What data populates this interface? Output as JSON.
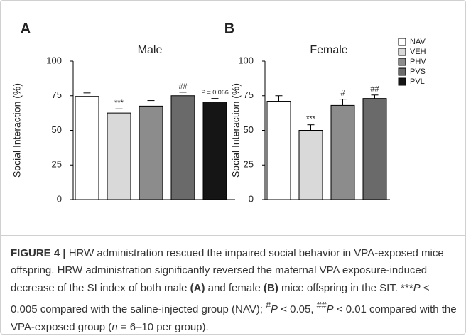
{
  "chart_data": [
    {
      "type": "bar",
      "panel": "A",
      "title": "Male",
      "ylabel": "Social Interaction (%)",
      "categories": [
        "NAV",
        "VEH",
        "PHV",
        "PVS",
        "PVL"
      ],
      "values": [
        74.5,
        62.5,
        67.5,
        75,
        70.5
      ],
      "errors": [
        2.5,
        3,
        4,
        2.5,
        2.5
      ],
      "annotations": [
        null,
        "***",
        null,
        "##",
        "P = 0.066"
      ],
      "colors": [
        "#ffffff",
        "#d9d9d9",
        "#8c8c8c",
        "#6a6a6a",
        "#151515"
      ],
      "ylim": [
        0,
        100
      ],
      "yticks": [
        0,
        25,
        50,
        75,
        100
      ]
    },
    {
      "type": "bar",
      "panel": "B",
      "title": "Female",
      "ylabel": "Social Interaction (%)",
      "categories": [
        "NAV",
        "VEH",
        "PHV",
        "PVS"
      ],
      "values": [
        71,
        50,
        68,
        73
      ],
      "errors": [
        4,
        4,
        4.5,
        2.5
      ],
      "annotations": [
        null,
        "***",
        "#",
        "##"
      ],
      "colors": [
        "#ffffff",
        "#d9d9d9",
        "#8c8c8c",
        "#6a6a6a"
      ],
      "ylim": [
        0,
        100
      ],
      "yticks": [
        0,
        25,
        50,
        75,
        100
      ]
    }
  ],
  "caption": {
    "label": "FIGURE 4 |",
    "segments": [
      " HRW administration rescued the impaired social behavior in VPA-exposed mice offspring. HRW administration significantly reversed the maternal VPA exposure-induced decrease of the SI index of both male ",
      "(A)",
      " and female ",
      "(B)",
      " mice offspring in the SIT. ***",
      "P",
      " < 0.005 compared with the saline-injected group (NAV); ",
      "#",
      "P",
      " < 0.05, ",
      "##",
      "P",
      " < 0.01 compared with the VPA-exposed group (",
      "n",
      " = 6–10 per group)."
    ]
  }
}
